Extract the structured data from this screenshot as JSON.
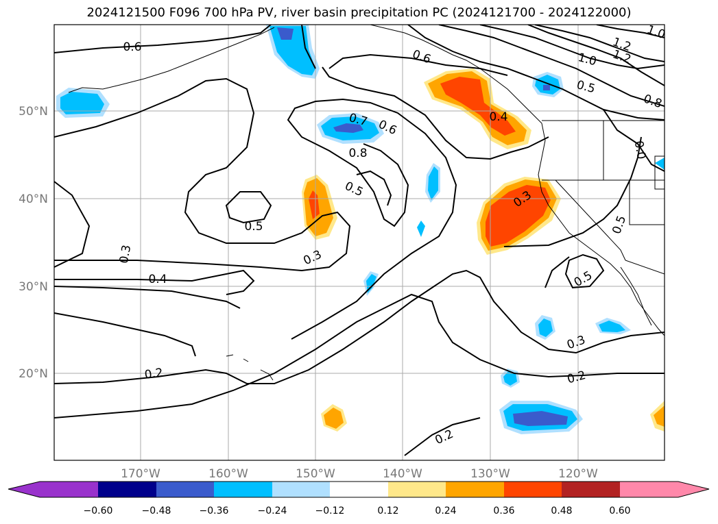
{
  "title": "2024121500 F096 700 hPa PV, river basin precipitation PC (2024121700 - 2024122000)",
  "axes": {
    "lon_ticks": [
      "170°W",
      "160°W",
      "150°W",
      "140°W",
      "130°W",
      "120°W"
    ],
    "lat_ticks": [
      "50°N",
      "40°N",
      "30°N",
      "20°N"
    ],
    "grid": true
  },
  "contour_labels": [
    "0.6",
    "0.5",
    "0.3",
    "0.4",
    "0.2",
    "0.7",
    "0.6",
    "0.8",
    "0.5",
    "0.3",
    "0.6",
    "0.4",
    "0.3",
    "1.2",
    "1.2",
    "1.0",
    "0.5",
    "0.8",
    "0.5",
    "0.5",
    "0.3",
    "0.2",
    "0.2",
    "1.0",
    "0.0"
  ],
  "colorbar": {
    "ticks": [
      "−0.60",
      "−0.48",
      "−0.36",
      "−0.24",
      "−0.12",
      "0.12",
      "0.24",
      "0.36",
      "0.48",
      "0.60"
    ],
    "colors": [
      "#9932cc",
      "#00008b",
      "#3a5bcc",
      "#00bfff",
      "#b0e0ff",
      "#ffffff",
      "#ffe88a",
      "#ffa500",
      "#ff4500",
      "#b22222",
      "#ff88aa"
    ]
  }
}
